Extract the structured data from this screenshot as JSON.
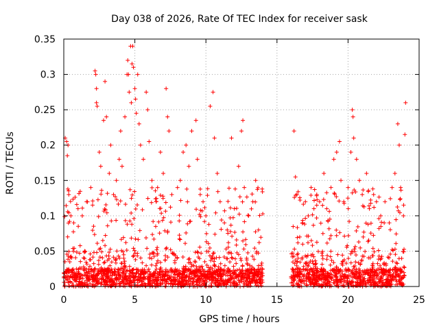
{
  "chart_data": {
    "type": "scatter",
    "title": "Day 038 of 2026, Rate Of TEC Index for receiver sask",
    "xlabel": "GPS time / hours",
    "ylabel": "ROTI / TECUs",
    "xlim": [
      0,
      25
    ],
    "ylim": [
      0,
      0.35
    ],
    "x_ticks": [
      0,
      5,
      10,
      15,
      20,
      25
    ],
    "y_ticks": [
      0,
      0.05,
      0.1,
      0.15,
      0.2,
      0.25,
      0.3,
      0.35
    ],
    "x_tick_labels": [
      "0",
      "5",
      "10",
      "15",
      "20",
      "25"
    ],
    "y_tick_labels": [
      "0",
      "0.05",
      "0.1",
      "0.15",
      "0.2",
      "0.25",
      "0.3",
      "0.35"
    ],
    "grid": true,
    "marker": "+",
    "color": "#ff0000",
    "data_gap_hours": [
      14.0,
      16.0
    ],
    "series": [
      {
        "name": "ROTI",
        "points": [
          [
            0.1,
            0.21
          ],
          [
            0.2,
            0.205
          ],
          [
            0.25,
            0.185
          ],
          [
            0.3,
            0.2
          ],
          [
            0.35,
            0.13
          ],
          [
            0.5,
            0.1
          ],
          [
            0.7,
            0.09
          ],
          [
            1.0,
            0.11
          ],
          [
            1.3,
            0.1
          ],
          [
            1.6,
            0.12
          ],
          [
            1.9,
            0.14
          ],
          [
            2.2,
            0.305
          ],
          [
            2.25,
            0.3
          ],
          [
            2.3,
            0.28
          ],
          [
            2.3,
            0.26
          ],
          [
            2.35,
            0.255
          ],
          [
            2.5,
            0.19
          ],
          [
            2.6,
            0.17
          ],
          [
            2.8,
            0.235
          ],
          [
            2.9,
            0.29
          ],
          [
            3.0,
            0.24
          ],
          [
            3.2,
            0.16
          ],
          [
            3.3,
            0.2
          ],
          [
            3.5,
            0.13
          ],
          [
            3.7,
            0.15
          ],
          [
            3.9,
            0.18
          ],
          [
            4.0,
            0.22
          ],
          [
            4.1,
            0.17
          ],
          [
            4.3,
            0.24
          ],
          [
            4.45,
            0.3
          ],
          [
            4.5,
            0.32
          ],
          [
            4.55,
            0.3
          ],
          [
            4.6,
            0.275
          ],
          [
            4.7,
            0.34
          ],
          [
            4.75,
            0.26
          ],
          [
            4.8,
            0.315
          ],
          [
            4.85,
            0.34
          ],
          [
            4.9,
            0.31
          ],
          [
            5.0,
            0.28
          ],
          [
            5.05,
            0.265
          ],
          [
            5.1,
            0.245
          ],
          [
            5.2,
            0.3
          ],
          [
            5.3,
            0.23
          ],
          [
            5.4,
            0.2
          ],
          [
            5.6,
            0.18
          ],
          [
            5.8,
            0.275
          ],
          [
            5.9,
            0.25
          ],
          [
            6.0,
            0.205
          ],
          [
            6.2,
            0.15
          ],
          [
            6.5,
            0.12
          ],
          [
            6.6,
            0.14
          ],
          [
            6.8,
            0.19
          ],
          [
            7.0,
            0.16
          ],
          [
            7.2,
            0.28
          ],
          [
            7.3,
            0.24
          ],
          [
            7.4,
            0.22
          ],
          [
            7.6,
            0.13
          ],
          [
            8.0,
            0.14
          ],
          [
            8.2,
            0.15
          ],
          [
            8.4,
            0.19
          ],
          [
            8.6,
            0.2
          ],
          [
            8.8,
            0.17
          ],
          [
            9.0,
            0.22
          ],
          [
            9.3,
            0.235
          ],
          [
            9.4,
            0.18
          ],
          [
            9.6,
            0.13
          ],
          [
            9.8,
            0.12
          ],
          [
            10.0,
            0.1
          ],
          [
            10.3,
            0.255
          ],
          [
            10.5,
            0.275
          ],
          [
            10.6,
            0.21
          ],
          [
            10.8,
            0.16
          ],
          [
            11.0,
            0.12
          ],
          [
            11.3,
            0.09
          ],
          [
            11.5,
            0.08
          ],
          [
            11.8,
            0.21
          ],
          [
            12.0,
            0.11
          ],
          [
            12.3,
            0.17
          ],
          [
            12.5,
            0.22
          ],
          [
            12.6,
            0.235
          ],
          [
            12.7,
            0.14
          ],
          [
            13.0,
            0.1
          ],
          [
            13.3,
            0.12
          ],
          [
            13.5,
            0.15
          ],
          [
            13.7,
            0.08
          ],
          [
            13.9,
            0.03
          ],
          [
            16.2,
            0.22
          ],
          [
            16.3,
            0.155
          ],
          [
            16.4,
            0.13
          ],
          [
            16.6,
            0.07
          ],
          [
            16.8,
            0.09
          ],
          [
            17.0,
            0.12
          ],
          [
            17.2,
            0.1
          ],
          [
            17.4,
            0.14
          ],
          [
            17.6,
            0.11
          ],
          [
            17.8,
            0.13
          ],
          [
            18.0,
            0.12
          ],
          [
            18.3,
            0.16
          ],
          [
            18.5,
            0.11
          ],
          [
            18.8,
            0.14
          ],
          [
            19.0,
            0.18
          ],
          [
            19.2,
            0.19
          ],
          [
            19.4,
            0.205
          ],
          [
            19.5,
            0.15
          ],
          [
            19.7,
            0.12
          ],
          [
            20.0,
            0.14
          ],
          [
            20.2,
            0.19
          ],
          [
            20.3,
            0.25
          ],
          [
            20.35,
            0.24
          ],
          [
            20.4,
            0.21
          ],
          [
            20.6,
            0.18
          ],
          [
            20.8,
            0.15
          ],
          [
            21.0,
            0.13
          ],
          [
            21.3,
            0.16
          ],
          [
            21.5,
            0.11
          ],
          [
            21.8,
            0.13
          ],
          [
            22.0,
            0.12
          ],
          [
            22.3,
            0.1
          ],
          [
            22.6,
            0.12
          ],
          [
            22.9,
            0.09
          ],
          [
            23.1,
            0.14
          ],
          [
            23.3,
            0.16
          ],
          [
            23.5,
            0.23
          ],
          [
            23.6,
            0.2
          ],
          [
            23.7,
            0.14
          ],
          [
            23.9,
            0.1
          ],
          [
            24.0,
            0.215
          ],
          [
            24.05,
            0.26
          ]
        ]
      }
    ],
    "dense_band": {
      "description": "Dense cloud of ROTI values between 0 and about 0.05 TECU, with frequent excursions to 0.1-0.15",
      "segments": [
        [
          0.0,
          14.0
        ],
        [
          16.0,
          24.0
        ]
      ],
      "typical_max": 0.05
    }
  }
}
